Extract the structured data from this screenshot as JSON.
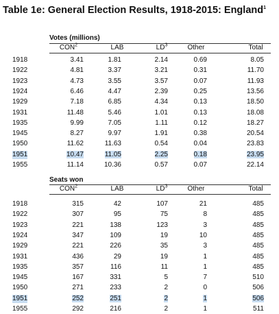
{
  "title": "Table 1e: General Election Results, 1918-2015: England",
  "title_sup": "1",
  "highlighted_row": 9,
  "sections": [
    {
      "heading": "Votes (millions)",
      "columns": [
        {
          "label": "CON",
          "sup": "2"
        },
        {
          "label": "LAB"
        },
        {
          "label": "LD",
          "sup": "3"
        },
        {
          "label": "Other"
        },
        {
          "label": "Total"
        }
      ],
      "rows": [
        [
          "1918",
          "3.41",
          "1.81",
          "2.14",
          "0.69",
          "8.05"
        ],
        [
          "1922",
          "4.81",
          "3.37",
          "3.21",
          "0.31",
          "11.70"
        ],
        [
          "1923",
          "4.73",
          "3.55",
          "3.57",
          "0.07",
          "11.93"
        ],
        [
          "1924",
          "6.46",
          "4.47",
          "2.39",
          "0.25",
          "13.56"
        ],
        [
          "1929",
          "7.18",
          "6.85",
          "4.34",
          "0.13",
          "18.50"
        ],
        [
          "1931",
          "11.48",
          "5.46",
          "1.01",
          "0.13",
          "18.08"
        ],
        [
          "1935",
          "9.99",
          "7.05",
          "1.11",
          "0.12",
          "18.27"
        ],
        [
          "1945",
          "8.27",
          "9.97",
          "1.91",
          "0.38",
          "20.54"
        ],
        [
          "1950",
          "11.62",
          "11.63",
          "0.54",
          "0.04",
          "23.83"
        ],
        [
          "1951",
          "10.47",
          "11.05",
          "2.25",
          "0.18",
          "23.95"
        ],
        [
          "1955",
          "11.14",
          "10.36",
          "0.57",
          "0.07",
          "22.14"
        ]
      ]
    },
    {
      "heading": "Seats won",
      "columns": [
        {
          "label": "CON",
          "sup": "2"
        },
        {
          "label": "LAB"
        },
        {
          "label": "LD",
          "sup": "3"
        },
        {
          "label": "Other"
        },
        {
          "label": "Total"
        }
      ],
      "rows": [
        [
          "1918",
          "315",
          "42",
          "107",
          "21",
          "485"
        ],
        [
          "1922",
          "307",
          "95",
          "75",
          "8",
          "485"
        ],
        [
          "1923",
          "221",
          "138",
          "123",
          "3",
          "485"
        ],
        [
          "1924",
          "347",
          "109",
          "19",
          "10",
          "485"
        ],
        [
          "1929",
          "221",
          "226",
          "35",
          "3",
          "485"
        ],
        [
          "1931",
          "436",
          "29",
          "19",
          "1",
          "485"
        ],
        [
          "1935",
          "357",
          "116",
          "11",
          "1",
          "485"
        ],
        [
          "1945",
          "167",
          "331",
          "5",
          "7",
          "510"
        ],
        [
          "1950",
          "271",
          "233",
          "2",
          "0",
          "506"
        ],
        [
          "1951",
          "252",
          "251",
          "2",
          "1",
          "506"
        ],
        [
          "1955",
          "292",
          "216",
          "2",
          "1",
          "511"
        ]
      ]
    }
  ]
}
